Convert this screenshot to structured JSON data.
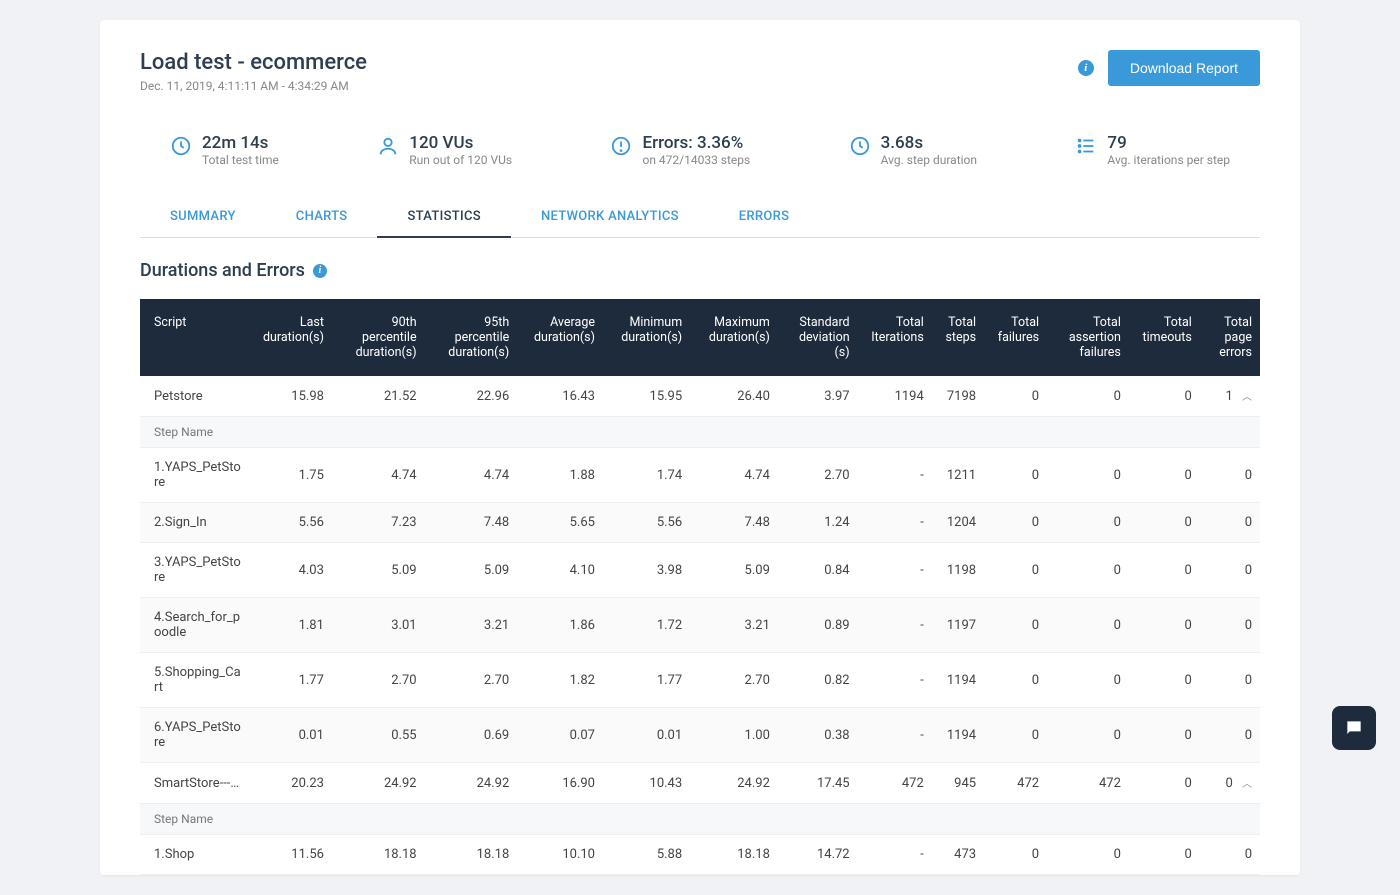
{
  "header": {
    "title": "Load test - ecommerce",
    "subtitle": "Dec. 11, 2019, 4:11:11 AM - 4:34:29 AM",
    "download_label": "Download Report"
  },
  "metrics": [
    {
      "value": "22m 14s",
      "label": "Total test time",
      "icon": "clock"
    },
    {
      "value": "120 VUs",
      "label": "Run out of 120 VUs",
      "icon": "user"
    },
    {
      "value": "Errors: 3.36%",
      "label": "on 472/14033 steps",
      "icon": "alert"
    },
    {
      "value": "3.68s",
      "label": "Avg. step duration",
      "icon": "clock"
    },
    {
      "value": "79",
      "label": "Avg. iterations per step",
      "icon": "list"
    }
  ],
  "tabs": [
    {
      "label": "SUMMARY",
      "active": false
    },
    {
      "label": "CHARTS",
      "active": false
    },
    {
      "label": "STATISTICS",
      "active": true
    },
    {
      "label": "NETWORK ANALYTICS",
      "active": false
    },
    {
      "label": "ERRORS",
      "active": false
    }
  ],
  "section_title": "Durations and Errors",
  "columns": [
    "Script",
    "Last duration(s)",
    "90th percentile duration(s)",
    "95th percentile duration(s)",
    "Average duration(s)",
    "Minimum duration(s)",
    "Maximum duration(s)",
    "Standard deviation (s)",
    "Total Iterations",
    "Total steps",
    "Total failures",
    "Total assertion failures",
    "Total timeouts",
    "Total page errors"
  ],
  "step_header": "Step Name",
  "groups": [
    {
      "name": "Petstore",
      "cells": [
        "15.98",
        "21.52",
        "22.96",
        "16.43",
        "15.95",
        "26.40",
        "3.97",
        "1194",
        "7198",
        "0",
        "0",
        "0",
        "1"
      ],
      "steps": [
        {
          "name": "1.YAPS_PetStore",
          "cells": [
            "1.75",
            "4.74",
            "4.74",
            "1.88",
            "1.74",
            "4.74",
            "2.70",
            "-",
            "1211",
            "0",
            "0",
            "0",
            "0"
          ],
          "alt": false
        },
        {
          "name": "2.Sign_In",
          "cells": [
            "5.56",
            "7.23",
            "7.48",
            "5.65",
            "5.56",
            "7.48",
            "1.24",
            "-",
            "1204",
            "0",
            "0",
            "0",
            "0"
          ],
          "alt": true
        },
        {
          "name": "3.YAPS_PetStore",
          "cells": [
            "4.03",
            "5.09",
            "5.09",
            "4.10",
            "3.98",
            "5.09",
            "0.84",
            "-",
            "1198",
            "0",
            "0",
            "0",
            "0"
          ],
          "alt": false
        },
        {
          "name": "4.Search_for_poodle",
          "cells": [
            "1.81",
            "3.01",
            "3.21",
            "1.86",
            "1.72",
            "3.21",
            "0.89",
            "-",
            "1197",
            "0",
            "0",
            "0",
            "0"
          ],
          "alt": true
        },
        {
          "name": "5.Shopping_Cart",
          "cells": [
            "1.77",
            "2.70",
            "2.70",
            "1.82",
            "1.77",
            "2.70",
            "0.82",
            "-",
            "1194",
            "0",
            "0",
            "0",
            "0"
          ],
          "alt": false
        },
        {
          "name": "6.YAPS_PetStore",
          "cells": [
            "0.01",
            "0.55",
            "0.69",
            "0.07",
            "0.01",
            "1.00",
            "0.38",
            "-",
            "1194",
            "0",
            "0",
            "0",
            "0"
          ],
          "alt": true
        }
      ]
    },
    {
      "name": "SmartStore---…",
      "cells": [
        "20.23",
        "24.92",
        "24.92",
        "16.90",
        "10.43",
        "24.92",
        "17.45",
        "472",
        "945",
        "472",
        "472",
        "0",
        "0"
      ],
      "steps": [
        {
          "name": "1.Shop",
          "cells": [
            "11.56",
            "18.18",
            "18.18",
            "10.10",
            "5.88",
            "18.18",
            "14.72",
            "-",
            "473",
            "0",
            "0",
            "0",
            "0"
          ],
          "alt": false
        }
      ]
    }
  ],
  "colors": {
    "accent": "#3a99d8",
    "thead_bg": "#1e2b3c"
  }
}
